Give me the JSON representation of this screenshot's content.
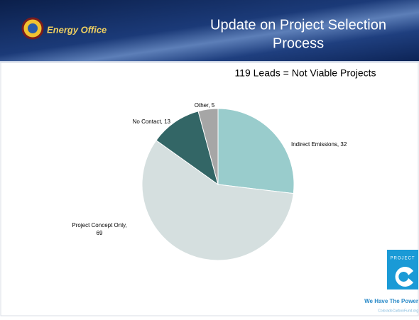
{
  "header": {
    "title": [
      "Update on Project Selection",
      "Process"
    ],
    "logo_text": "Energy Office"
  },
  "chart_data": {
    "type": "pie",
    "title": "119 Leads = Not Viable Projects",
    "categories": [
      "Indirect Emissions",
      "Project Concept Only",
      "No Contact",
      "Other"
    ],
    "values": [
      32,
      69,
      13,
      5
    ],
    "colors": [
      "#99cccc",
      "#d5dfdf",
      "#336666",
      "#a6a6a6"
    ]
  },
  "footer_logo": {
    "badge": "PROJECT",
    "tagline": "We Have The Power",
    "url": "ColoradoCarbonFund.org"
  }
}
